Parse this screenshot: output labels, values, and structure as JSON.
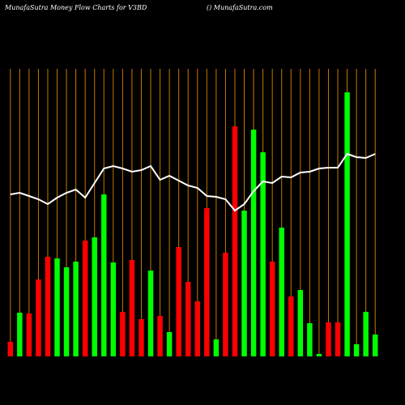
{
  "chart_data": {
    "type": "bar",
    "title": "MunafaSutra  Money Flow  Charts for V3BD",
    "subtitle": "() MunafaSutra.com",
    "categories": [
      null,
      null,
      null,
      null,
      null,
      null,
      null,
      null,
      null,
      null,
      null,
      null,
      null,
      null,
      null,
      null,
      null,
      null,
      null,
      null,
      null,
      null,
      null,
      null,
      null,
      null,
      null,
      null,
      null,
      null,
      null,
      null,
      null,
      null,
      null,
      null,
      null,
      null,
      null,
      null
    ],
    "values": [
      18,
      54,
      53,
      95,
      123,
      121,
      110,
      117,
      143,
      147,
      200,
      116,
      55,
      119,
      46,
      106,
      50,
      30,
      135,
      92,
      68,
      183,
      21,
      128,
      284,
      180,
      280,
      252,
      117,
      159,
      74,
      82,
      41,
      3,
      42,
      42,
      326,
      15,
      55,
      27
    ],
    "colors": [
      "#ff0000",
      "#00ff00",
      "#ff0000",
      "#ff0000",
      "#ff0000",
      "#00ff00",
      "#00ff00",
      "#00ff00",
      "#ff0000",
      "#00ff00",
      "#00ff00",
      "#00ff00",
      "#ff0000",
      "#ff0000",
      "#ff0000",
      "#00ff00",
      "#ff0000",
      "#00ff00",
      "#ff0000",
      "#ff0000",
      "#ff0000",
      "#ff0000",
      "#00ff00",
      "#ff0000",
      "#ff0000",
      "#00ff00",
      "#00ff00",
      "#00ff00",
      "#ff0000",
      "#00ff00",
      "#ff0000",
      "#00ff00",
      "#00ff00",
      "#00ff00",
      "#ff0000",
      "#ff0000",
      "#00ff00",
      "#00ff00",
      "#00ff00",
      "#00ff00"
    ],
    "line": {
      "color": "#ffffff",
      "values": [
        200,
        202,
        198,
        194,
        188,
        196,
        202,
        206,
        196,
        214,
        232,
        235,
        232,
        228,
        230,
        235,
        218,
        223,
        217,
        211,
        208,
        198,
        197,
        194,
        180,
        188,
        204,
        216,
        214,
        222,
        221,
        227,
        228,
        232,
        233,
        233,
        250,
        246,
        245,
        250
      ]
    },
    "grid_color": "#c87800",
    "ylim": [
      0,
      340
    ]
  }
}
